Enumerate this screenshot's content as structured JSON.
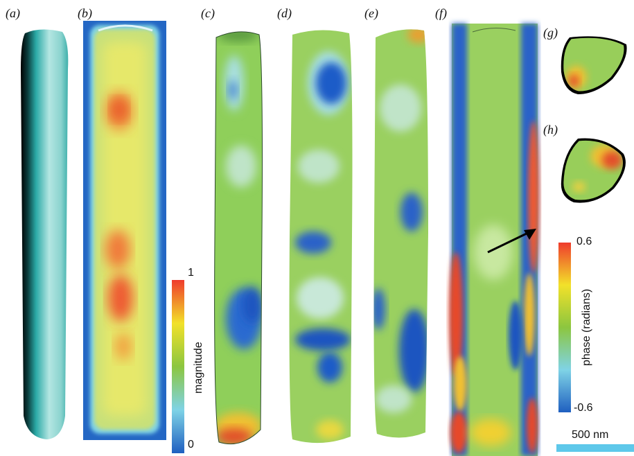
{
  "panel_labels": {
    "a": "(a)",
    "b": "(b)",
    "c": "(c)",
    "d": "(d)",
    "e": "(e)",
    "f": "(f)",
    "g": "(g)",
    "h": "(h)"
  },
  "magnitude_colorbar": {
    "title": "magnitude",
    "max_label": "1",
    "min_label": "0",
    "colors": [
      "#1f5fc0",
      "#7fd3e6",
      "#8cc63f",
      "#f2e12a",
      "#ef3b2c"
    ]
  },
  "phase_colorbar": {
    "title": "phase (radians)",
    "max_label": "0.6",
    "min_label": "-0.6",
    "colors": [
      "#1f5fc0",
      "#7fd3e6",
      "#8cc63f",
      "#f2e12a",
      "#ef3b2c"
    ]
  },
  "scale_bar": {
    "label": "500 nm",
    "color": "#5ec8ea"
  }
}
